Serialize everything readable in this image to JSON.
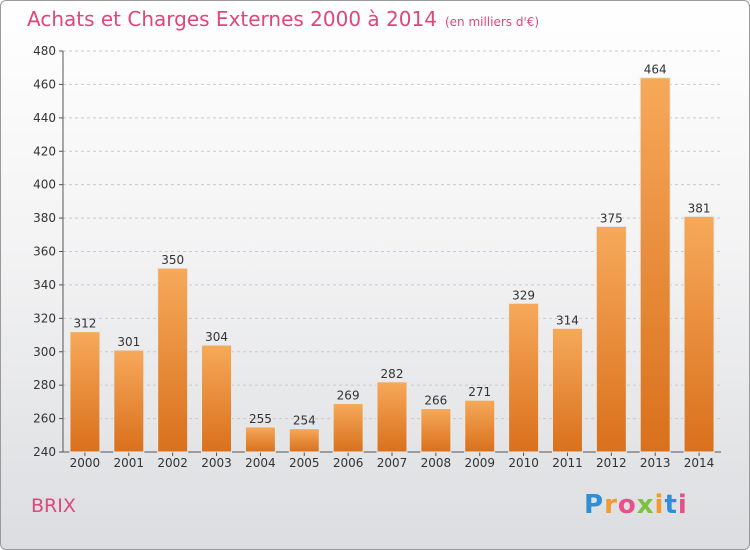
{
  "header": {
    "title": "Achats et Charges Externes 2000 à 2014",
    "subtitle": "(en milliers d'€)"
  },
  "commune": "BRIX",
  "logo": {
    "text": "Proxiti",
    "letter_colors": [
      "#2f8fd6",
      "#f29a2e",
      "#e94f8a",
      "#7cc242",
      "#f29a2e",
      "#2f8fd6",
      "#e94f8a"
    ]
  },
  "chart_data": {
    "type": "bar",
    "title": "Achats et Charges Externes 2000 à 2014",
    "subtitle": "(en milliers d'€)",
    "categories": [
      "2000",
      "2001",
      "2002",
      "2003",
      "2004",
      "2005",
      "2006",
      "2007",
      "2008",
      "2009",
      "2010",
      "2011",
      "2012",
      "2013",
      "2014"
    ],
    "values": [
      312,
      301,
      350,
      304,
      255,
      254,
      269,
      282,
      266,
      271,
      329,
      314,
      375,
      464,
      381
    ],
    "ylim": [
      240,
      480
    ],
    "yticks": [
      240,
      260,
      280,
      300,
      320,
      340,
      360,
      380,
      400,
      420,
      440,
      460,
      480
    ],
    "grid": true,
    "bar_color": "#f0923a",
    "xlabel": "",
    "ylabel": ""
  }
}
